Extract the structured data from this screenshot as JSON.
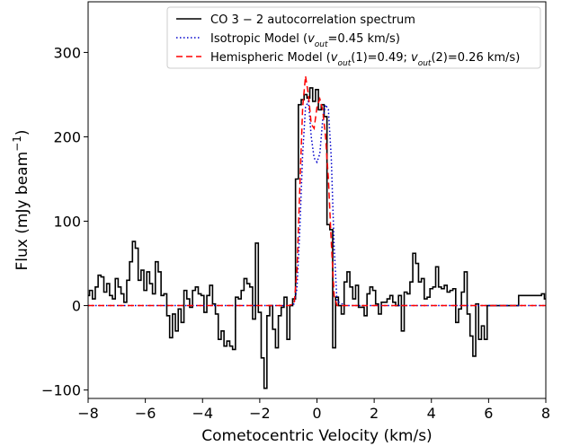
{
  "chart_data": {
    "type": "line",
    "title": "",
    "xlabel": "Cometocentric Velocity (km/s)",
    "ylabel_main": "Flux (mJy beam",
    "ylabel_exp": "−1",
    "ylabel_close": ")",
    "xlim": [
      -8,
      8
    ],
    "ylim": [
      -110,
      360
    ],
    "xticks": [
      -8,
      -6,
      -4,
      -2,
      0,
      2,
      4,
      6,
      8
    ],
    "xtick_labels": [
      "−8",
      "−6",
      "−4",
      "−2",
      "0",
      "2",
      "4",
      "6",
      "8"
    ],
    "yticks": [
      -100,
      0,
      100,
      200,
      300
    ],
    "ytick_labels": [
      "−100",
      "0",
      "100",
      "200",
      "300"
    ],
    "grid": false,
    "legend_position": "top-right",
    "legend": [
      {
        "style": "solid",
        "color": "#000000",
        "parts": [
          {
            "t": "CO 3 − 2 autocorrelation spectrum"
          }
        ]
      },
      {
        "style": "dotted",
        "color": "#0000cc",
        "parts": [
          {
            "t": "Isotropic Model ("
          },
          {
            "t": "v",
            "it": true
          },
          {
            "t": "out",
            "it": true,
            "sub": true
          },
          {
            "t": "=0.45 km/s)"
          }
        ]
      },
      {
        "style": "dashed",
        "color": "#ff0000",
        "parts": [
          {
            "t": "Hemispheric Model ("
          },
          {
            "t": "v",
            "it": true
          },
          {
            "t": "out",
            "it": true,
            "sub": true
          },
          {
            "t": "(1)=0.49; "
          },
          {
            "t": "v",
            "it": true
          },
          {
            "t": "out",
            "it": true,
            "sub": true
          },
          {
            "t": "(2)=0.26 km/s)"
          }
        ]
      }
    ],
    "series": [
      {
        "name": "CO 3 − 2 autocorrelation spectrum",
        "color": "#000000",
        "style": "solid",
        "step": true,
        "x": [
          -8.0,
          -7.9,
          -7.8,
          -7.7,
          -7.6,
          -7.5,
          -7.4,
          -7.3,
          -7.2,
          -7.1,
          -7.0,
          -6.9,
          -6.8,
          -6.7,
          -6.6,
          -6.5,
          -6.4,
          -6.3,
          -6.2,
          -6.1,
          -6.0,
          -5.9,
          -5.8,
          -5.7,
          -5.6,
          -5.5,
          -5.4,
          -5.3,
          -5.2,
          -5.1,
          -5.0,
          -4.9,
          -4.8,
          -4.7,
          -4.6,
          -4.5,
          -4.4,
          -4.3,
          -4.2,
          -4.1,
          -4.0,
          -3.9,
          -3.8,
          -3.7,
          -3.6,
          -3.5,
          -3.4,
          -3.3,
          -3.2,
          -3.1,
          -3.0,
          -2.9,
          -2.8,
          -2.7,
          -2.6,
          -2.5,
          -2.4,
          -2.3,
          -2.2,
          -2.1,
          -2.0,
          -1.9,
          -1.8,
          -1.7,
          -1.6,
          -1.5,
          -1.4,
          -1.3,
          -1.2,
          -1.1,
          -1.0,
          -0.9,
          -0.8,
          -0.7,
          -0.6,
          -0.5,
          -0.4,
          -0.3,
          -0.2,
          -0.1,
          0.0,
          0.1,
          0.2,
          0.3,
          0.4,
          0.5,
          0.6,
          0.7,
          0.8,
          0.9,
          1.0,
          1.1,
          1.2,
          1.3,
          1.4,
          1.5,
          1.6,
          1.7,
          1.8,
          1.9,
          2.0,
          2.1,
          2.2,
          2.3,
          2.4,
          2.5,
          2.6,
          2.7,
          2.8,
          2.9,
          3.0,
          3.1,
          3.2,
          3.3,
          3.4,
          3.5,
          3.6,
          3.7,
          3.8,
          3.9,
          4.0,
          4.1,
          4.2,
          4.3,
          4.4,
          4.5,
          4.6,
          4.7,
          4.8,
          4.9,
          5.0,
          5.1,
          5.2,
          5.3,
          5.4,
          5.5,
          5.6,
          5.7,
          5.8,
          5.9,
          6.0,
          6.1,
          6.2,
          6.3,
          6.4,
          6.5,
          6.6,
          6.7,
          6.8,
          6.9,
          7.0,
          7.1,
          7.2,
          7.3,
          7.4,
          7.5,
          7.6,
          7.7,
          7.8,
          7.9,
          8.0
        ],
        "y": [
          12,
          18,
          8,
          22,
          36,
          34,
          16,
          26,
          12,
          8,
          32,
          22,
          14,
          4,
          30,
          52,
          76,
          68,
          30,
          42,
          18,
          40,
          26,
          14,
          52,
          40,
          12,
          14,
          -12,
          -38,
          -10,
          -30,
          -4,
          -20,
          18,
          8,
          -2,
          18,
          22,
          14,
          12,
          -8,
          12,
          24,
          2,
          -10,
          -40,
          -30,
          -48,
          -42,
          -48,
          -52,
          10,
          8,
          18,
          32,
          26,
          22,
          -16,
          74,
          -8,
          -62,
          -98,
          -12,
          0,
          -28,
          -50,
          -12,
          -2,
          10,
          -40,
          0,
          8,
          150,
          238,
          244,
          250,
          246,
          258,
          242,
          256,
          232,
          238,
          224,
          96,
          90,
          -50,
          10,
          0,
          -10,
          28,
          40,
          22,
          8,
          24,
          -2,
          -2,
          -12,
          14,
          22,
          18,
          2,
          -10,
          4,
          4,
          8,
          12,
          4,
          0,
          12,
          -30,
          16,
          14,
          28,
          62,
          50,
          28,
          32,
          8,
          10,
          20,
          22,
          46,
          22,
          20,
          24,
          16,
          18,
          20,
          -20,
          -4,
          16,
          40,
          -10,
          -36,
          -60,
          2,
          -40,
          -24,
          -40,
          0,
          0,
          0,
          0,
          0,
          0,
          0,
          0,
          0,
          0,
          0,
          12,
          12,
          12,
          12,
          12,
          12,
          12,
          12,
          14,
          8
        ]
      },
      {
        "name": "Isotropic Model (v_out=0.45 km/s)",
        "color": "#0000cc",
        "style": "dotted",
        "step": false,
        "x": [
          -8.0,
          -1.0,
          -0.8,
          -0.7,
          -0.6,
          -0.5,
          -0.4,
          -0.3,
          -0.2,
          -0.1,
          0.0,
          0.1,
          0.2,
          0.3,
          0.4,
          0.5,
          0.6,
          0.7,
          1.0,
          8.0
        ],
        "y": [
          0,
          0,
          2,
          20,
          90,
          180,
          235,
          242,
          200,
          175,
          170,
          180,
          220,
          238,
          232,
          175,
          70,
          5,
          0,
          0
        ]
      },
      {
        "name": "Hemispheric Model (v_out(1)=0.49; v_out(2)=0.26 km/s)",
        "color": "#ff0000",
        "style": "dashed",
        "step": false,
        "x": [
          -8.0,
          -1.0,
          -0.8,
          -0.7,
          -0.6,
          -0.5,
          -0.4,
          -0.3,
          -0.2,
          -0.1,
          0.0,
          0.1,
          0.2,
          0.3,
          0.4,
          0.5,
          0.6,
          0.7,
          1.0,
          8.0
        ],
        "y": [
          0,
          0,
          2,
          40,
          140,
          235,
          272,
          250,
          215,
          210,
          235,
          245,
          232,
          200,
          150,
          75,
          12,
          0,
          0,
          0
        ]
      }
    ]
  }
}
